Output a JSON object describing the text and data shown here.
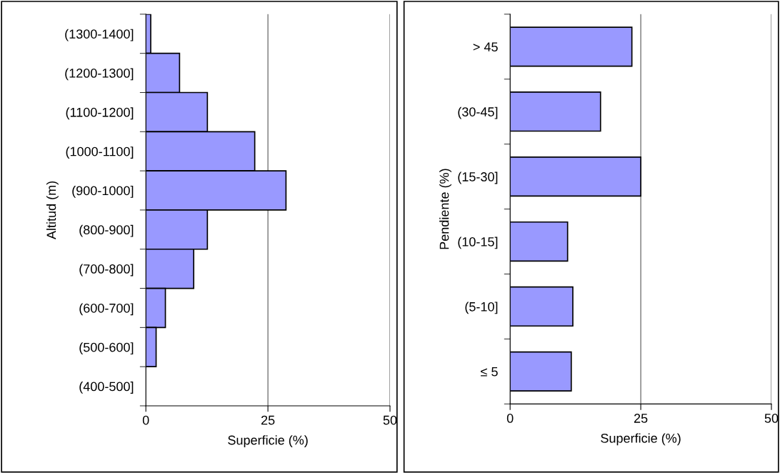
{
  "chart_data": [
    {
      "type": "bar",
      "orientation": "horizontal",
      "xlabel": "Superficie (%)",
      "ylabel": "Altitud (m)",
      "categories": [
        "(1300-1400]",
        "(1200-1300]",
        "(1100-1200]",
        "(1000-1100]",
        "(900-1000]",
        "(800-900]",
        "(700-800]",
        "(600-700]",
        "(500-600]",
        "(400-500]"
      ],
      "values": [
        1.0,
        6.9,
        12.6,
        22.3,
        28.7,
        12.6,
        9.8,
        4.0,
        2.1,
        0
      ],
      "color": "#9999ff",
      "xlim": [
        0,
        50
      ],
      "xticks": [
        0,
        25,
        50
      ],
      "grid": "x",
      "legend": false
    },
    {
      "type": "bar",
      "orientation": "horizontal",
      "xlabel": "Superficie (%)",
      "ylabel": "Pendiente (%)",
      "categories": [
        "> 45",
        "(30-45]",
        "(15-30]",
        "(10-15]",
        "(5-10]",
        "≤ 5"
      ],
      "values": [
        23.3,
        17.3,
        25.0,
        11.0,
        12.0,
        11.7
      ],
      "color": "#9999ff",
      "xlim": [
        0,
        50
      ],
      "xticks": [
        0,
        25,
        50
      ],
      "grid": "x",
      "legend": false
    }
  ]
}
